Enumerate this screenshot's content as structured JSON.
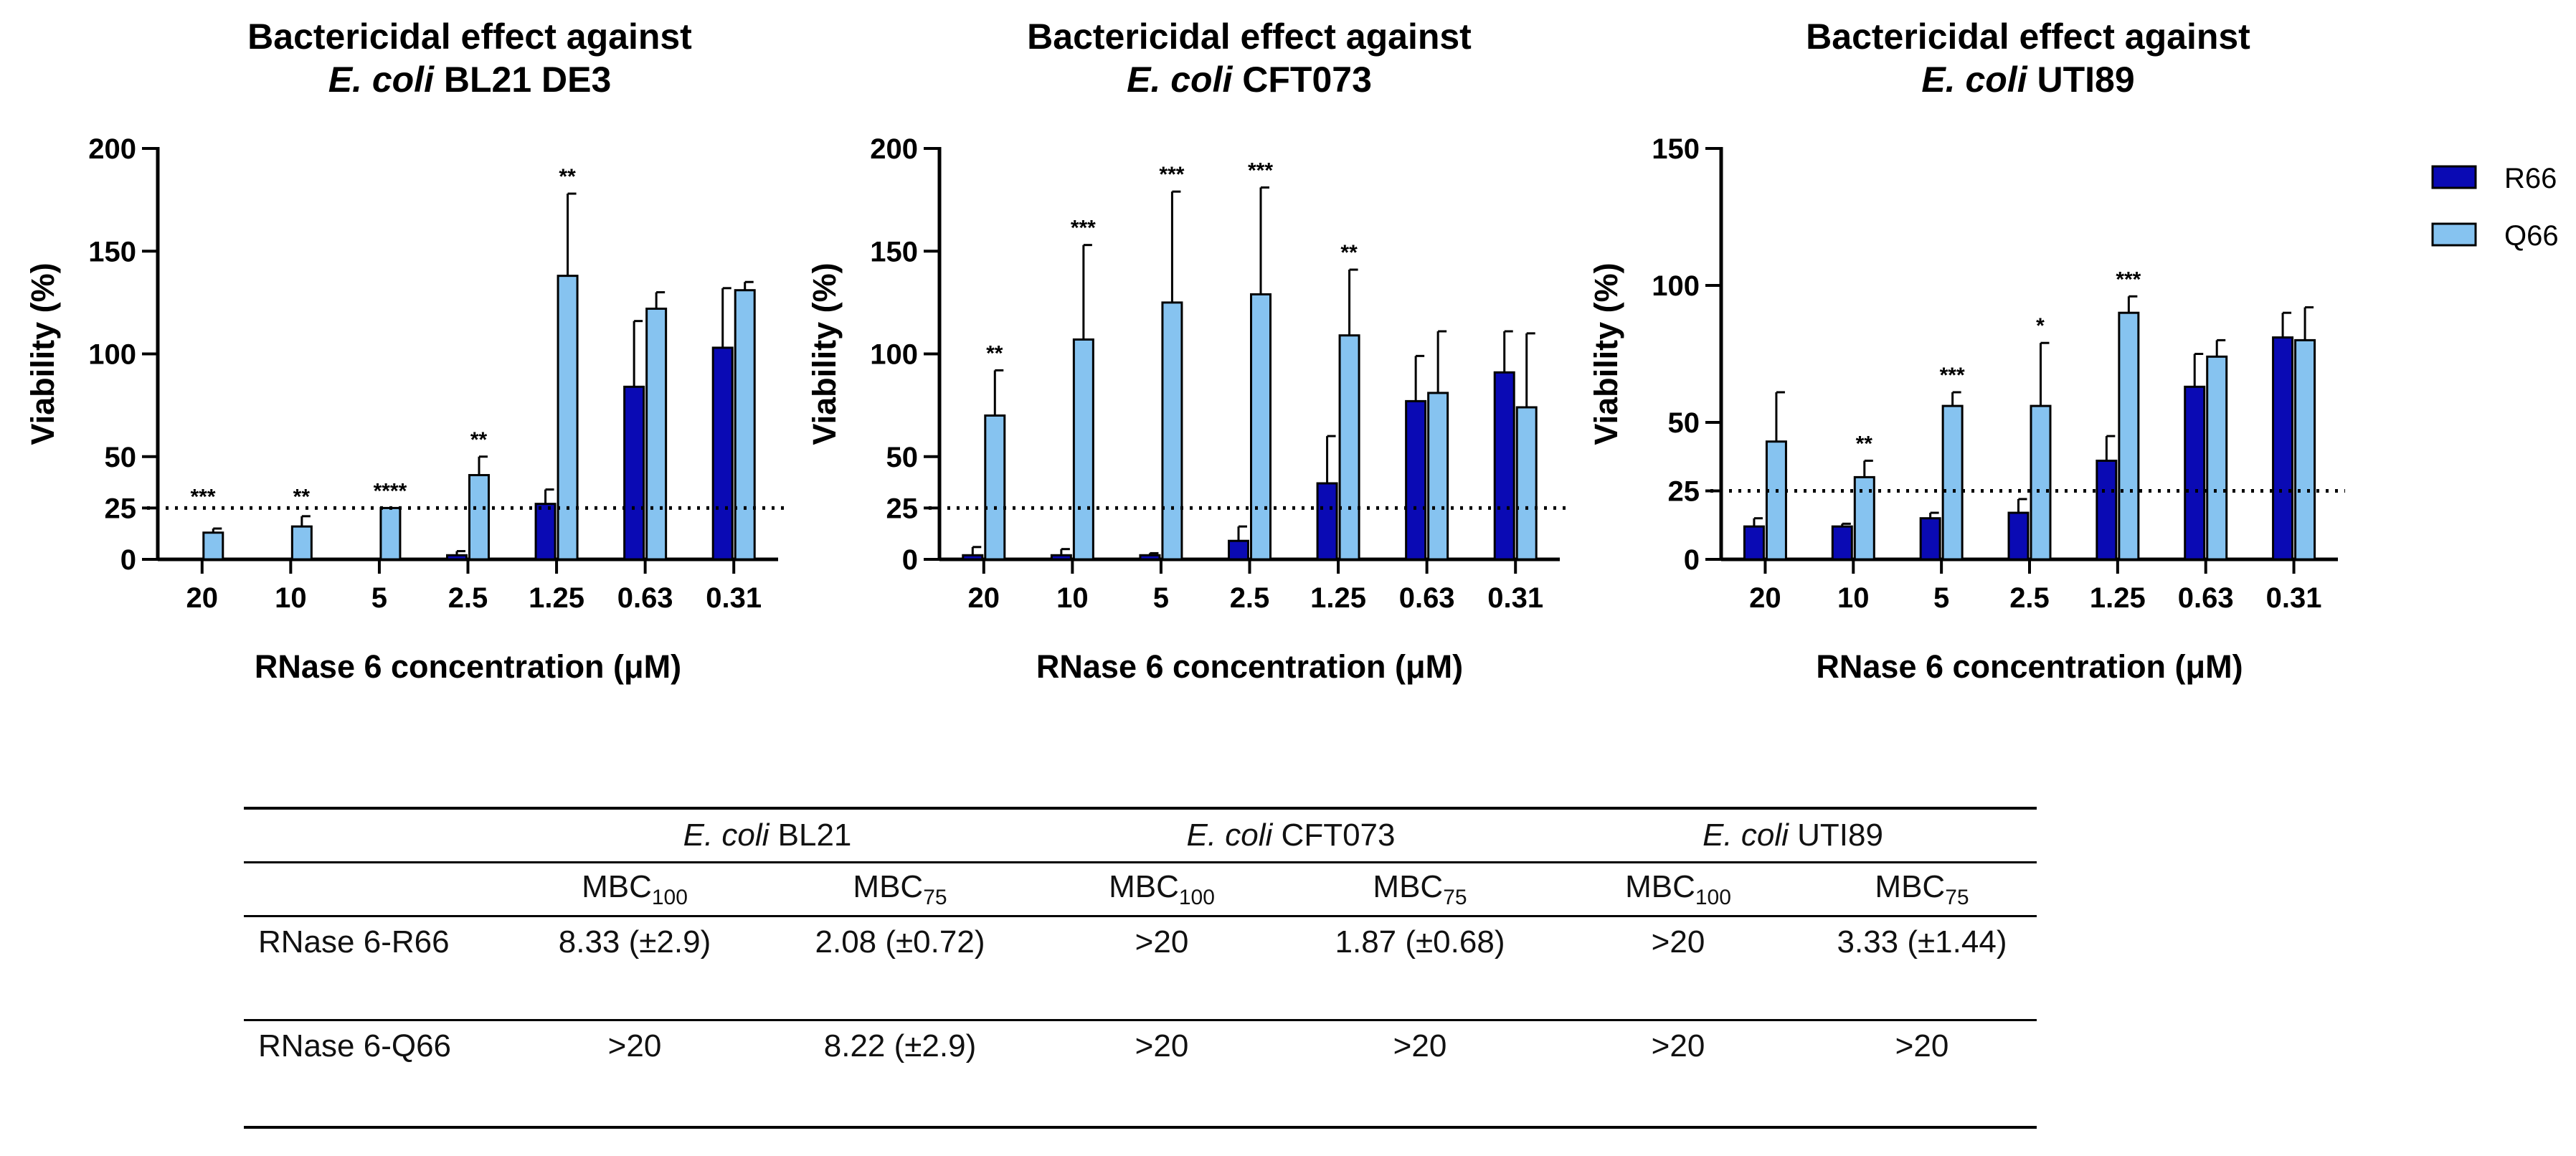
{
  "colors": {
    "r66": "#0a0ab4",
    "q66": "#86c3f0",
    "axis": "#000000"
  },
  "y_axis_label": "Viability (%)",
  "x_axis_label_prefix": "RNase 6 concentration (",
  "x_axis_unit": "μM",
  "x_axis_label_suffix": ")",
  "legend": {
    "r66": "R66",
    "q66": "Q66"
  },
  "chart_data": [
    {
      "type": "bar",
      "title_line1": "Bactericidal effect against",
      "title_italic": "E. coli",
      "title_strain": " BL21 DE3",
      "categories": [
        "20",
        "10",
        "5",
        "2.5",
        "1.25",
        "0.63",
        "0.31"
      ],
      "ylim": [
        0,
        200
      ],
      "yticks": [
        0,
        25,
        50,
        100,
        150,
        200
      ],
      "threshold": 25,
      "series": [
        {
          "name": "R66",
          "values": [
            0,
            0,
            0,
            2,
            27,
            84,
            103
          ],
          "errors": [
            0,
            0,
            0,
            2,
            7,
            32,
            29
          ]
        },
        {
          "name": "Q66",
          "values": [
            13,
            16,
            25,
            41,
            138,
            122,
            131
          ],
          "errors": [
            2,
            5,
            0,
            9,
            40,
            8,
            4
          ]
        }
      ],
      "significance": [
        "***",
        "**",
        "****",
        "**",
        "**",
        "",
        ""
      ]
    },
    {
      "type": "bar",
      "title_line1": "Bactericidal effect against",
      "title_italic": "E. coli",
      "title_strain": " CFT073",
      "categories": [
        "20",
        "10",
        "5",
        "2.5",
        "1.25",
        "0.63",
        "0.31"
      ],
      "ylim": [
        0,
        200
      ],
      "yticks": [
        0,
        25,
        50,
        100,
        150,
        200
      ],
      "threshold": 25,
      "series": [
        {
          "name": "R66",
          "values": [
            2,
            2,
            2,
            9,
            37,
            77,
            91
          ],
          "errors": [
            4,
            3,
            1,
            7,
            23,
            22,
            20
          ]
        },
        {
          "name": "Q66",
          "values": [
            70,
            107,
            125,
            129,
            109,
            81,
            74
          ],
          "errors": [
            22,
            46,
            54,
            52,
            32,
            30,
            36
          ]
        }
      ],
      "significance": [
        "**",
        "***",
        "***",
        "***",
        "**",
        "",
        ""
      ]
    },
    {
      "type": "bar",
      "title_line1": "Bactericidal effect against",
      "title_italic": "E. coli",
      "title_strain": " UTI89",
      "categories": [
        "20",
        "10",
        "5",
        "2.5",
        "1.25",
        "0.63",
        "0.31"
      ],
      "ylim": [
        0,
        150
      ],
      "yticks": [
        0,
        25,
        50,
        100,
        150
      ],
      "threshold": 25,
      "series": [
        {
          "name": "R66",
          "values": [
            12,
            12,
            15,
            17,
            36,
            63,
            81
          ],
          "errors": [
            3,
            1,
            2,
            5,
            9,
            12,
            9
          ]
        },
        {
          "name": "Q66",
          "values": [
            43,
            30,
            56,
            56,
            90,
            74,
            80
          ],
          "errors": [
            18,
            6,
            5,
            23,
            6,
            6,
            12
          ]
        }
      ],
      "significance": [
        "",
        "**",
        "***",
        "*",
        "***",
        "",
        ""
      ]
    }
  ],
  "table": {
    "strain_prefix": "E. coli",
    "strains": [
      " BL21",
      " CFT073",
      " UTI89"
    ],
    "mbc_base": "MBC",
    "mbc_sub_100": "100",
    "mbc_sub_75": "75",
    "rows": [
      {
        "label": "RNase 6-R66",
        "cells": [
          "8.33 (±2.9)",
          "2.08 (±0.72)",
          ">20",
          "1.87 (±0.68)",
          ">20",
          "3.33 (±1.44)"
        ]
      },
      {
        "label": "RNase 6-Q66",
        "cells": [
          ">20",
          "8.22 (±2.9)",
          ">20",
          ">20",
          ">20",
          ">20"
        ]
      }
    ]
  }
}
